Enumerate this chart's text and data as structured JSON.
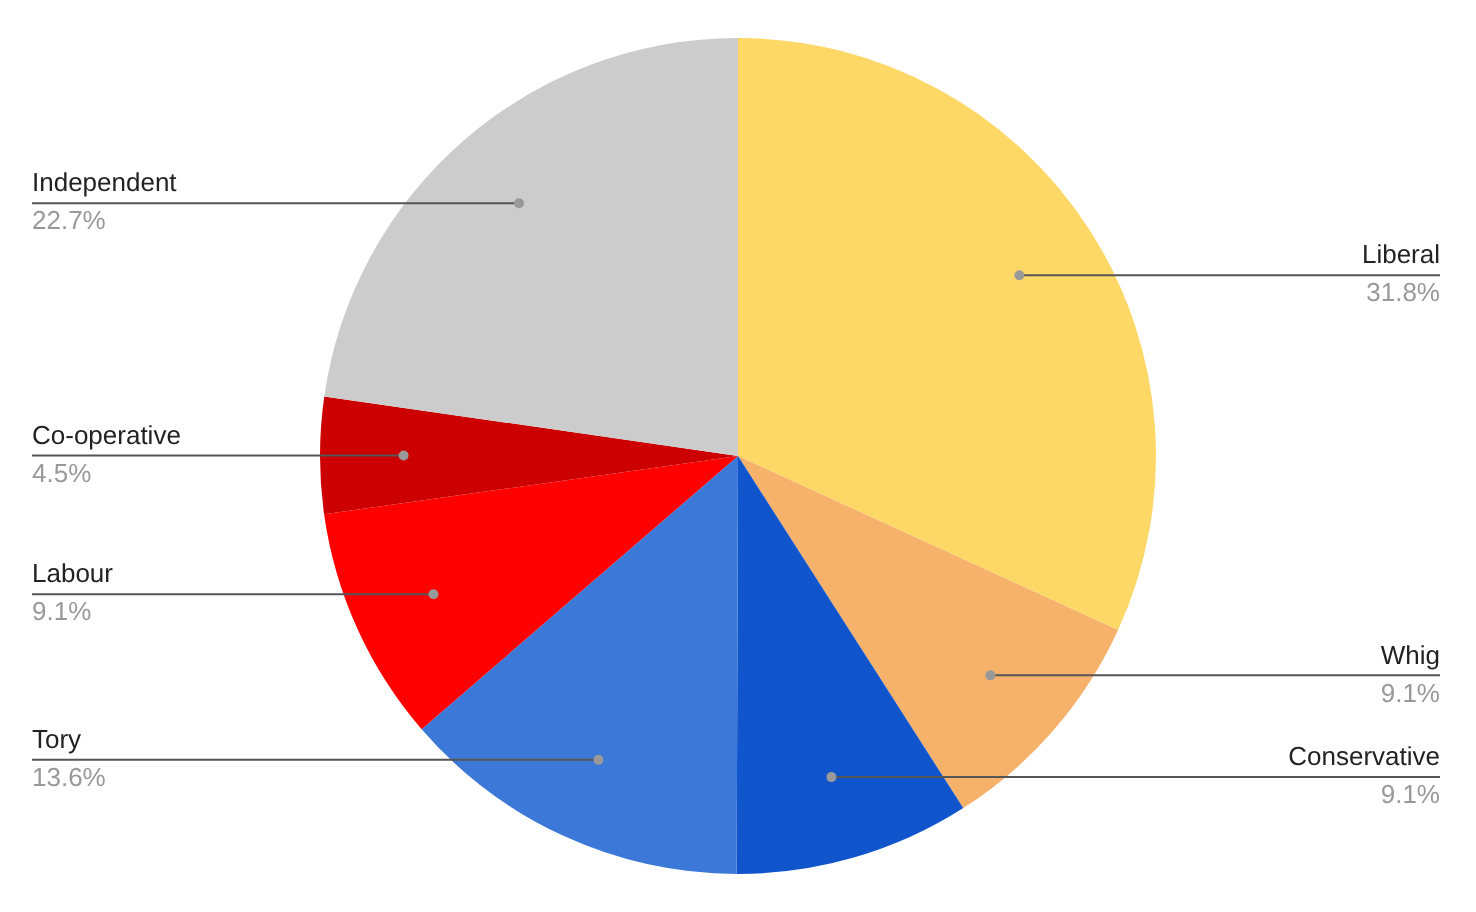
{
  "chart_data": {
    "type": "pie",
    "categories": [
      "Liberal",
      "Whig",
      "Conservative",
      "Tory",
      "Labour",
      "Co-operative",
      "Independent"
    ],
    "values": [
      31.8,
      9.1,
      9.1,
      13.6,
      9.1,
      4.5,
      22.7
    ],
    "colors": [
      "#fdd866",
      "#f6b26b",
      "#1155cc",
      "#3c78d8",
      "#ff0000",
      "#cc0000",
      "#cccccc"
    ],
    "value_labels": [
      "31.8%",
      "9.1%",
      "9.1%",
      "13.6%",
      "9.1%",
      "4.5%",
      "22.7%"
    ],
    "legend": false
  }
}
